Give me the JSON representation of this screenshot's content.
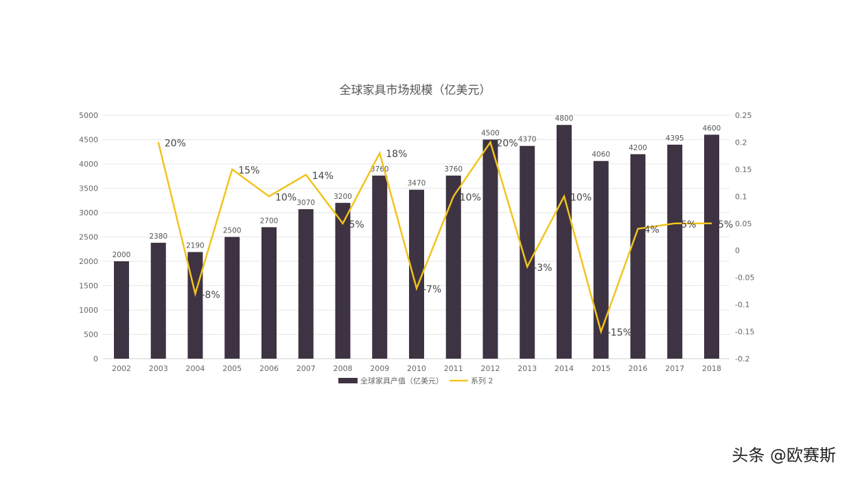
{
  "chart_data": {
    "type": "bar+line",
    "title": "全球家具市场规模（亿美元）",
    "categories": [
      "2002",
      "2003",
      "2004",
      "2005",
      "2006",
      "2007",
      "2008",
      "2009",
      "2010",
      "2011",
      "2012",
      "2013",
      "2014",
      "2015",
      "2016",
      "2017",
      "2018"
    ],
    "series": [
      {
        "name": "全球家具产值（亿美元）",
        "type": "bar",
        "axis": "left",
        "color": "#3e3342",
        "values": [
          2000,
          2380,
          2190,
          2500,
          2700,
          3070,
          3200,
          3760,
          3470,
          3760,
          4500,
          4370,
          4800,
          4060,
          4200,
          4395,
          4600
        ]
      },
      {
        "name": "系列 2",
        "type": "line",
        "axis": "right",
        "color": "#f2c31b",
        "values": [
          null,
          0.2,
          -0.08,
          0.15,
          0.1,
          0.14,
          0.05,
          0.18,
          -0.07,
          0.1,
          0.2,
          -0.03,
          0.1,
          -0.15,
          0.04,
          0.05,
          0.05
        ],
        "labels": [
          "",
          "20%",
          "-8%",
          "15%",
          "10%",
          "14%",
          "5%",
          "18%",
          "-7%",
          "10%",
          "20%",
          "-3%",
          "10%",
          "-15%",
          "4%",
          "5%",
          "5%"
        ]
      }
    ],
    "y_left": {
      "lim": [
        0,
        5000
      ],
      "ticks": [
        "0",
        "500",
        "1000",
        "1500",
        "2000",
        "2500",
        "3000",
        "3500",
        "4000",
        "4500",
        "5000"
      ]
    },
    "y_right": {
      "lim": [
        -0.2,
        0.25
      ],
      "ticks": [
        "-0.2",
        "-0.15",
        "-0.1",
        "-0.05",
        "0",
        "0.05",
        "0.1",
        "0.15",
        "0.2",
        "0.25"
      ]
    },
    "grid": true,
    "legend": "bottom"
  },
  "watermark": "头条 @欧赛斯"
}
